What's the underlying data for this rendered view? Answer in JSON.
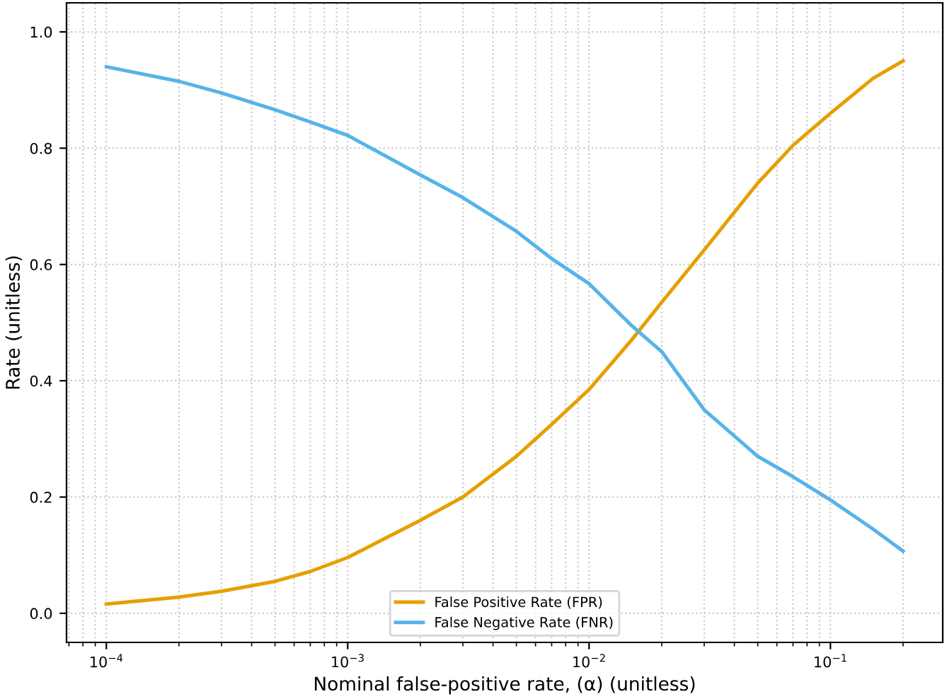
{
  "chart_data": {
    "type": "line",
    "xlabel": "Nominal false-positive rate, (α) (unitless)",
    "ylabel": "Rate (unitless)",
    "log": "x",
    "grid": true,
    "legend": "bottom",
    "marker": "none",
    "line_style": "solid",
    "xlim": [
      6.84e-05,
      0.292
    ],
    "xticks": [
      {
        "value": 0.0001,
        "label": "10$^{−4}$"
      },
      {
        "value": 0.001,
        "label": "10$^{−3}$"
      },
      {
        "value": 0.01,
        "label": "10$^{−2}$"
      },
      {
        "value": 0.1,
        "label": "10$^{−1}$"
      }
    ],
    "ylim": [
      -0.05,
      1.05
    ],
    "yticks": [
      {
        "value": 0,
        "label": "0.0"
      },
      {
        "value": 0.2,
        "label": "0.2"
      },
      {
        "value": 0.4,
        "label": "0.4"
      },
      {
        "value": 0.6,
        "label": "0.6"
      },
      {
        "value": 0.8,
        "label": "0.8"
      },
      {
        "value": 1,
        "label": "1.0"
      }
    ],
    "x": [
      0.0001,
      0.0002,
      0.0003,
      0.0005,
      0.0007,
      0.001,
      0.002,
      0.003,
      0.005,
      0.007,
      0.01,
      0.015,
      0.02,
      0.03,
      0.05,
      0.07,
      0.1,
      0.15,
      0.2
    ],
    "series": [
      {
        "name": "False Positive Rate (FPR)",
        "color": "#e69f00",
        "values": [
          0.016,
          0.028,
          0.038,
          0.055,
          0.072,
          0.096,
          0.16,
          0.2,
          0.27,
          0.325,
          0.385,
          0.47,
          0.535,
          0.625,
          0.74,
          0.805,
          0.86,
          0.92,
          0.95
        ]
      },
      {
        "name": "False Negative Rate (FNR)",
        "color": "#56b4e9",
        "values": [
          0.94,
          0.915,
          0.895,
          0.866,
          0.845,
          0.822,
          0.754,
          0.715,
          0.657,
          0.61,
          0.567,
          0.495,
          0.45,
          0.35,
          0.27,
          0.235,
          0.195,
          0.145,
          0.107
        ]
      }
    ]
  }
}
